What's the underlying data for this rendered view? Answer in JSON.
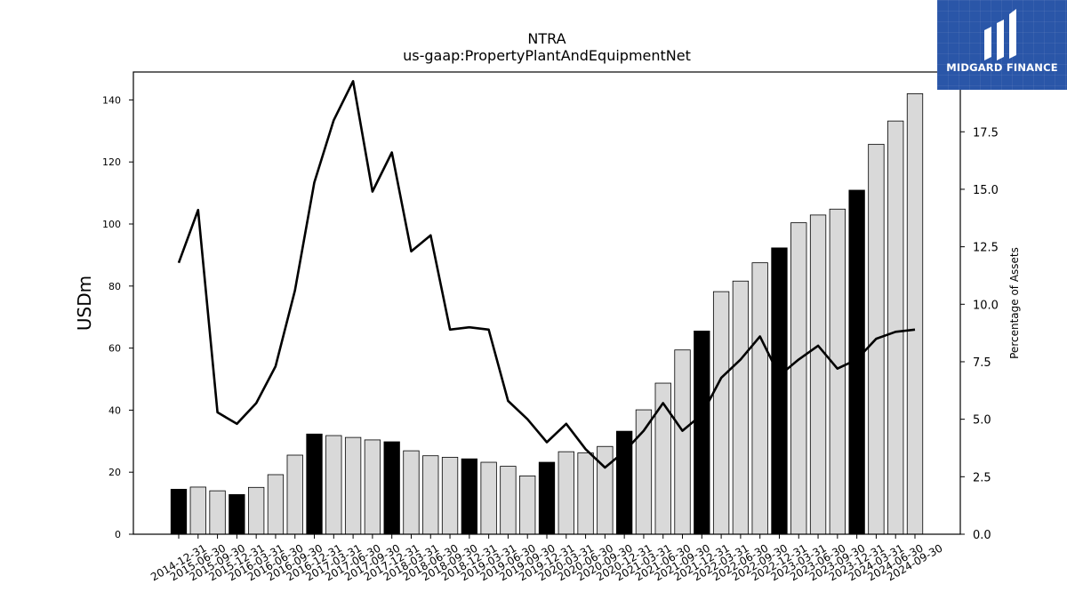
{
  "chart_data": {
    "type": "bar",
    "title": "NTRA",
    "subtitle": "us-gaap:PropertyPlantAndEquipmentNet",
    "ylabel": "USDm",
    "y2label": "Percentage of Assets",
    "ylim": [
      0,
      149
    ],
    "y2lim": [
      0,
      20.1
    ],
    "yticks": [
      0,
      20,
      40,
      60,
      80,
      100,
      120,
      140
    ],
    "y2ticks": [
      0.0,
      2.5,
      5.0,
      7.5,
      10.0,
      12.5,
      15.0,
      17.5
    ],
    "categories": [
      "2014-12-31",
      "2015-06-30",
      "2015-09-30",
      "2015-12-31",
      "2016-03-31",
      "2016-06-30",
      "2016-09-30",
      "2016-12-31",
      "2017-03-31",
      "2017-06-30",
      "2017-09-30",
      "2017-12-31",
      "2018-03-31",
      "2018-06-30",
      "2018-09-30",
      "2018-12-31",
      "2019-03-31",
      "2019-06-30",
      "2019-09-30",
      "2019-12-31",
      "2020-03-31",
      "2020-06-30",
      "2020-09-30",
      "2020-12-31",
      "2021-03-31",
      "2021-06-30",
      "2021-09-30",
      "2021-12-31",
      "2022-03-31",
      "2022-06-30",
      "2022-09-30",
      "2022-12-31",
      "2023-03-31",
      "2023-06-30",
      "2023-09-30",
      "2023-12-31",
      "2024-03-31",
      "2024-06-30",
      "2024-09-30"
    ],
    "series": [
      {
        "kind": "bar",
        "axis": "left",
        "values": [
          14.5,
          15.2,
          14.0,
          12.8,
          15.1,
          19.2,
          25.5,
          32.3,
          31.8,
          31.2,
          30.4,
          29.8,
          26.9,
          25.3,
          24.8,
          24.3,
          23.2,
          21.9,
          18.8,
          23.2,
          26.6,
          26.2,
          28.3,
          33.2,
          40.1,
          48.7,
          59.4,
          65.5,
          78.2,
          81.6,
          87.5,
          92.3,
          100.4,
          102.9,
          104.8,
          110.9,
          125.7,
          133.2,
          142.0
        ],
        "colors": [
          "#000000",
          "#d9d9d9",
          "#d9d9d9",
          "#000000",
          "#d9d9d9",
          "#d9d9d9",
          "#d9d9d9",
          "#000000",
          "#d9d9d9",
          "#d9d9d9",
          "#d9d9d9",
          "#000000",
          "#d9d9d9",
          "#d9d9d9",
          "#d9d9d9",
          "#000000",
          "#d9d9d9",
          "#d9d9d9",
          "#d9d9d9",
          "#000000",
          "#d9d9d9",
          "#d9d9d9",
          "#d9d9d9",
          "#000000",
          "#d9d9d9",
          "#d9d9d9",
          "#d9d9d9",
          "#000000",
          "#d9d9d9",
          "#d9d9d9",
          "#d9d9d9",
          "#000000",
          "#d9d9d9",
          "#d9d9d9",
          "#d9d9d9",
          "#000000",
          "#d9d9d9",
          "#d9d9d9",
          "#d9d9d9"
        ]
      },
      {
        "kind": "line",
        "axis": "right",
        "color": "#000000",
        "values": [
          11.8,
          14.1,
          5.3,
          4.8,
          5.7,
          7.3,
          10.6,
          15.3,
          18.0,
          19.7,
          14.9,
          16.6,
          12.3,
          13.0,
          8.9,
          9.0,
          8.9,
          5.8,
          5.0,
          4.0,
          4.8,
          3.7,
          2.9,
          3.6,
          4.5,
          5.7,
          4.5,
          5.2,
          6.8,
          7.6,
          8.6,
          6.9,
          7.6,
          8.2,
          7.2,
          7.6,
          8.5,
          8.8,
          8.9
        ]
      }
    ],
    "grid": false
  },
  "logo": {
    "text": "MIDGARD FINANCE",
    "bg_color": "#2a56a8"
  }
}
